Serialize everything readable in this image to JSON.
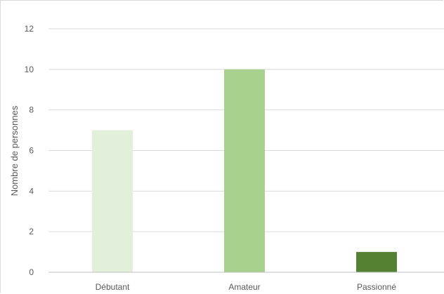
{
  "chart_data": {
    "type": "bar",
    "title": "",
    "xlabel": "",
    "ylabel": "Nombre de personnes",
    "categories": [
      "Débutant",
      "Amateur",
      "Passionné"
    ],
    "values": [
      7,
      10,
      1
    ],
    "bar_colors": [
      "#e2efda",
      "#a9d18e",
      "#548235"
    ],
    "ylim": [
      0,
      12
    ],
    "yticks": [
      "0",
      "2",
      "4",
      "6",
      "8",
      "10",
      "12"
    ],
    "grid": true,
    "legend": "none",
    "gridline_color": "#d9d9d9",
    "axis_color": "#bfbfbf"
  }
}
